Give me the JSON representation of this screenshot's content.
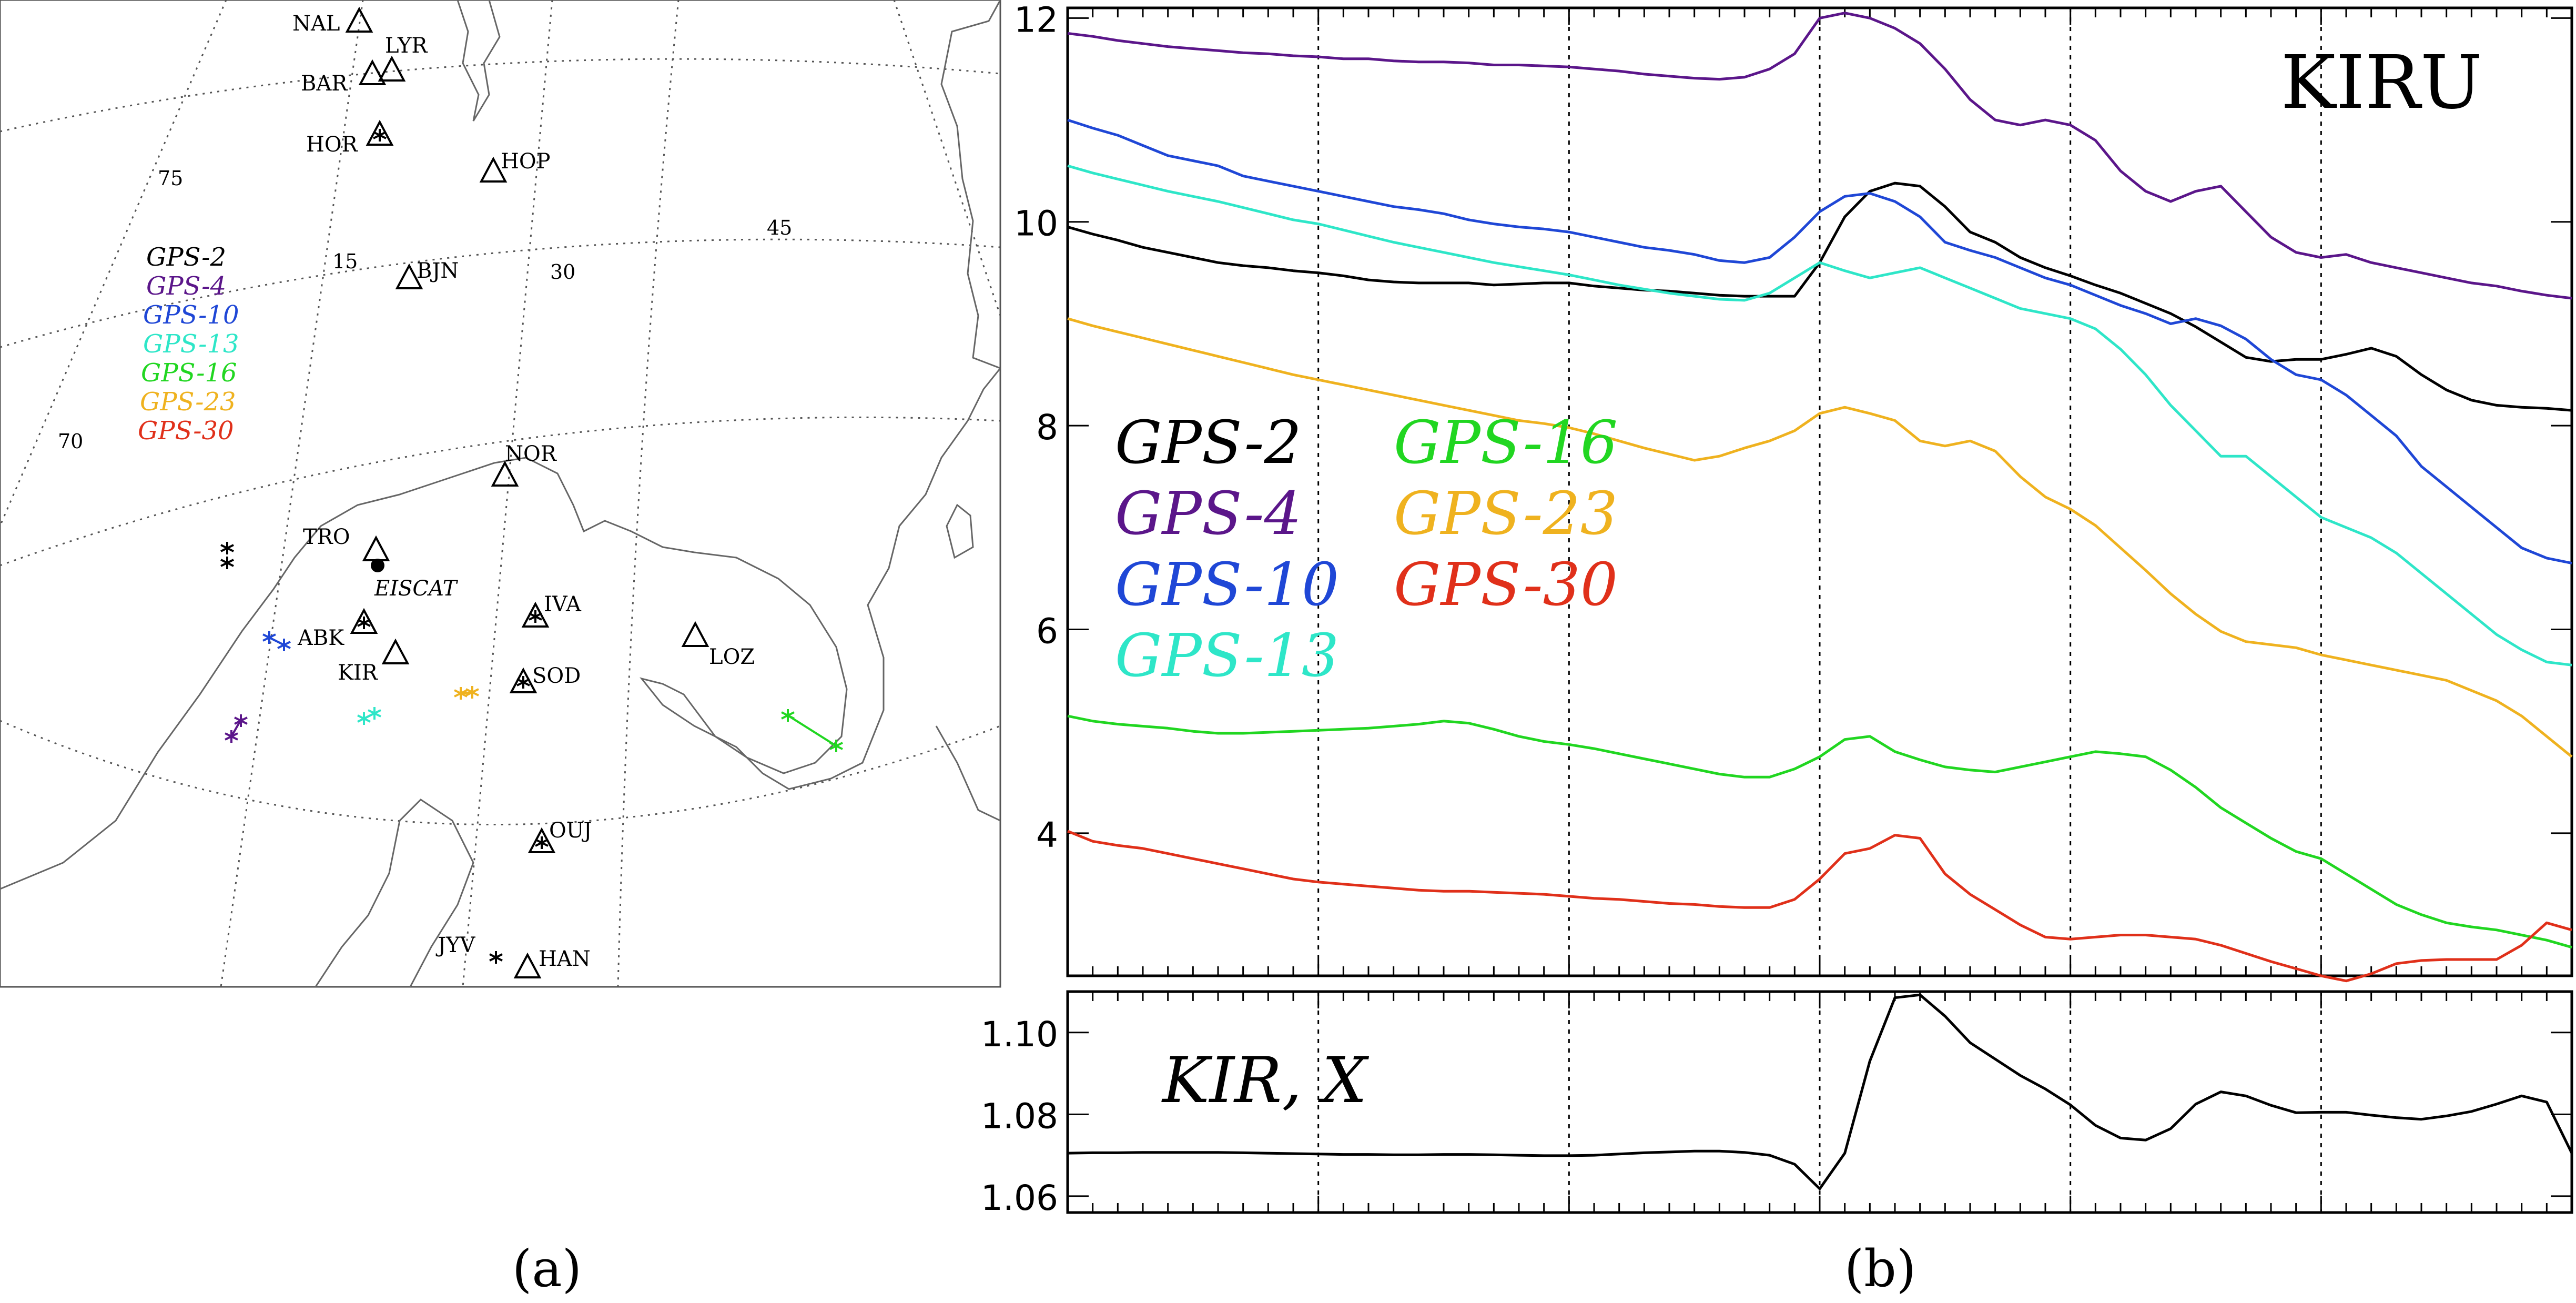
{
  "panel_a": {
    "caption": "(a)",
    "lat_labels": [
      {
        "key": "lat-75",
        "text": "75"
      },
      {
        "key": "lat-70",
        "text": "70"
      }
    ],
    "lon_labels": [
      {
        "key": "lon-15",
        "text": "15"
      },
      {
        "key": "lon-30",
        "text": "30"
      },
      {
        "key": "lon-45",
        "text": "45"
      }
    ],
    "stations": [
      {
        "key": "nal",
        "text": "NAL"
      },
      {
        "key": "lyr",
        "text": "LYR"
      },
      {
        "key": "bar",
        "text": "BAR"
      },
      {
        "key": "hor",
        "text": "HOR"
      },
      {
        "key": "hop",
        "text": "HOP"
      },
      {
        "key": "bjn",
        "text": "BJN"
      },
      {
        "key": "nor",
        "text": "NOR"
      },
      {
        "key": "tro",
        "text": "TRO"
      },
      {
        "key": "abk",
        "text": "ABK"
      },
      {
        "key": "kir",
        "text": "KIR"
      },
      {
        "key": "iva",
        "text": "IVA"
      },
      {
        "key": "sod",
        "text": "SOD"
      },
      {
        "key": "loz",
        "text": "LOZ"
      },
      {
        "key": "ouj",
        "text": "OUJ"
      },
      {
        "key": "jyv",
        "text": "JYV"
      },
      {
        "key": "han",
        "text": "HAN"
      }
    ],
    "eiscat_label": "EISCAT",
    "legend": [
      {
        "text": "GPS-2",
        "color": "#000000"
      },
      {
        "text": "GPS-4",
        "color": "#5b168a"
      },
      {
        "text": "GPS-10",
        "color": "#1f47d6"
      },
      {
        "text": "GPS-13",
        "color": "#2ee6c8"
      },
      {
        "text": "GPS-16",
        "color": "#21d621"
      },
      {
        "text": "GPS-23",
        "color": "#efb21f"
      },
      {
        "text": "GPS-30",
        "color": "#e0301a"
      }
    ]
  },
  "panel_b": {
    "caption": "(b)",
    "top_label": "KIRU",
    "bottom_label": "KIR, X"
  },
  "chart_data": [
    {
      "type": "line",
      "title": "KIRU",
      "ylim": [
        2.6,
        12.1
      ],
      "yticks": [
        "4",
        "6",
        "8",
        "10",
        "12"
      ],
      "yticks_values": [
        4,
        6,
        8,
        10,
        12
      ],
      "xlim": [
        0,
        60
      ],
      "x": [
        0,
        1,
        2,
        3,
        4,
        5,
        6,
        7,
        8,
        9,
        10,
        11,
        12,
        13,
        14,
        15,
        16,
        17,
        18,
        19,
        20,
        21,
        22,
        23,
        24,
        25,
        26,
        27,
        28,
        29,
        30,
        31,
        32,
        33,
        34,
        35,
        36,
        37,
        38,
        39,
        40,
        41,
        42,
        43,
        44,
        45,
        46,
        47,
        48,
        49,
        50,
        51,
        52,
        53,
        54,
        55,
        56,
        57,
        58,
        59,
        60
      ],
      "vlines": [
        10,
        20,
        30,
        40,
        50
      ],
      "grid": false,
      "legend_placement": "center-left",
      "series": [
        {
          "name": "GPS-2",
          "color": "#000000",
          "values": [
            9.95,
            9.88,
            9.82,
            9.75,
            9.7,
            9.65,
            9.6,
            9.57,
            9.55,
            9.52,
            9.5,
            9.47,
            9.43,
            9.41,
            9.4,
            9.4,
            9.4,
            9.38,
            9.39,
            9.4,
            9.4,
            9.37,
            9.35,
            9.33,
            9.32,
            9.3,
            9.28,
            9.27,
            9.27,
            9.27,
            9.6,
            10.05,
            10.3,
            10.38,
            10.35,
            10.15,
            9.9,
            9.8,
            9.65,
            9.55,
            9.47,
            9.38,
            9.3,
            9.2,
            9.1,
            8.97,
            8.82,
            8.67,
            8.63,
            8.65,
            8.65,
            8.7,
            8.76,
            8.68,
            8.5,
            8.35,
            8.25,
            8.2,
            8.18,
            8.17,
            8.15
          ]
        },
        {
          "name": "GPS-4",
          "color": "#5b168a",
          "values": [
            11.85,
            11.82,
            11.78,
            11.75,
            11.72,
            11.7,
            11.68,
            11.66,
            11.65,
            11.63,
            11.62,
            11.6,
            11.6,
            11.58,
            11.57,
            11.57,
            11.56,
            11.54,
            11.54,
            11.53,
            11.52,
            11.5,
            11.48,
            11.45,
            11.43,
            11.41,
            11.4,
            11.42,
            11.5,
            11.65,
            12.0,
            12.05,
            12.0,
            11.9,
            11.75,
            11.5,
            11.2,
            11.0,
            10.95,
            11.0,
            10.95,
            10.8,
            10.5,
            10.3,
            10.2,
            10.3,
            10.35,
            10.1,
            9.85,
            9.7,
            9.65,
            9.68,
            9.6,
            9.55,
            9.5,
            9.45,
            9.4,
            9.37,
            9.32,
            9.28,
            9.25
          ]
        },
        {
          "name": "GPS-10",
          "color": "#1f47d6",
          "values": [
            11.0,
            10.92,
            10.85,
            10.75,
            10.65,
            10.6,
            10.55,
            10.45,
            10.4,
            10.35,
            10.3,
            10.25,
            10.2,
            10.15,
            10.12,
            10.08,
            10.02,
            9.98,
            9.95,
            9.93,
            9.9,
            9.85,
            9.8,
            9.75,
            9.72,
            9.68,
            9.62,
            9.6,
            9.65,
            9.85,
            10.1,
            10.25,
            10.28,
            10.2,
            10.05,
            9.8,
            9.72,
            9.65,
            9.55,
            9.45,
            9.38,
            9.28,
            9.18,
            9.1,
            9.0,
            9.05,
            8.98,
            8.85,
            8.65,
            8.5,
            8.45,
            8.3,
            8.1,
            7.9,
            7.6,
            7.4,
            7.2,
            7.0,
            6.8,
            6.7,
            6.65
          ]
        },
        {
          "name": "GPS-13",
          "color": "#2ee6c8",
          "values": [
            10.55,
            10.48,
            10.42,
            10.36,
            10.3,
            10.25,
            10.2,
            10.14,
            10.08,
            10.02,
            9.98,
            9.92,
            9.86,
            9.8,
            9.75,
            9.7,
            9.65,
            9.6,
            9.56,
            9.52,
            9.48,
            9.43,
            9.38,
            9.34,
            9.3,
            9.27,
            9.24,
            9.23,
            9.3,
            9.45,
            9.6,
            9.52,
            9.45,
            9.5,
            9.55,
            9.45,
            9.35,
            9.25,
            9.15,
            9.1,
            9.05,
            8.95,
            8.75,
            8.5,
            8.2,
            7.95,
            7.7,
            7.7,
            7.5,
            7.3,
            7.1,
            7.0,
            6.9,
            6.75,
            6.55,
            6.35,
            6.15,
            5.95,
            5.8,
            5.68,
            5.65
          ]
        },
        {
          "name": "GPS-16",
          "color": "#21d621",
          "values": [
            5.15,
            5.1,
            5.07,
            5.05,
            5.03,
            5.0,
            4.98,
            4.98,
            4.99,
            5.0,
            5.01,
            5.02,
            5.03,
            5.05,
            5.07,
            5.1,
            5.08,
            5.02,
            4.95,
            4.9,
            4.87,
            4.83,
            4.78,
            4.73,
            4.68,
            4.63,
            4.58,
            4.55,
            4.55,
            4.63,
            4.75,
            4.92,
            4.95,
            4.8,
            4.72,
            4.65,
            4.62,
            4.6,
            4.65,
            4.7,
            4.75,
            4.8,
            4.78,
            4.75,
            4.62,
            4.45,
            4.25,
            4.1,
            3.95,
            3.82,
            3.75,
            3.6,
            3.45,
            3.3,
            3.2,
            3.12,
            3.08,
            3.05,
            3.0,
            2.95,
            2.88
          ]
        },
        {
          "name": "GPS-23",
          "color": "#efb21f",
          "values": [
            9.05,
            8.98,
            8.92,
            8.86,
            8.8,
            8.74,
            8.68,
            8.62,
            8.56,
            8.5,
            8.45,
            8.4,
            8.35,
            8.3,
            8.25,
            8.2,
            8.15,
            8.1,
            8.05,
            8.02,
            7.98,
            7.92,
            7.85,
            7.78,
            7.72,
            7.66,
            7.7,
            7.78,
            7.85,
            7.95,
            8.12,
            8.18,
            8.12,
            8.05,
            7.85,
            7.8,
            7.85,
            7.75,
            7.5,
            7.3,
            7.18,
            7.02,
            6.8,
            6.58,
            6.35,
            6.15,
            5.98,
            5.88,
            5.85,
            5.82,
            5.75,
            5.7,
            5.65,
            5.6,
            5.55,
            5.5,
            5.4,
            5.3,
            5.15,
            4.95,
            4.75
          ]
        },
        {
          "name": "GPS-30",
          "color": "#e0301a",
          "values": [
            4.02,
            3.92,
            3.88,
            3.85,
            3.8,
            3.75,
            3.7,
            3.65,
            3.6,
            3.55,
            3.52,
            3.5,
            3.48,
            3.46,
            3.44,
            3.43,
            3.43,
            3.42,
            3.41,
            3.4,
            3.38,
            3.36,
            3.35,
            3.33,
            3.31,
            3.3,
            3.28,
            3.27,
            3.27,
            3.35,
            3.55,
            3.8,
            3.85,
            3.98,
            3.95,
            3.6,
            3.4,
            3.25,
            3.1,
            2.98,
            2.96,
            2.98,
            3.0,
            3.0,
            2.98,
            2.96,
            2.9,
            2.82,
            2.74,
            2.67,
            2.6,
            2.55,
            2.62,
            2.72,
            2.75,
            2.76,
            2.76,
            2.76,
            2.9,
            3.12,
            3.05
          ]
        }
      ]
    },
    {
      "type": "line",
      "title": "KIR, X",
      "ylim": [
        1.056,
        1.11
      ],
      "yticks": [
        "1.06",
        "1.08",
        "1.10"
      ],
      "yticks_values": [
        1.06,
        1.08,
        1.1
      ],
      "xlim": [
        0,
        60
      ],
      "x": [
        0,
        1,
        2,
        3,
        4,
        5,
        6,
        7,
        8,
        9,
        10,
        11,
        12,
        13,
        14,
        15,
        16,
        17,
        18,
        19,
        20,
        21,
        22,
        23,
        24,
        25,
        26,
        27,
        28,
        29,
        30,
        31,
        32,
        33,
        34,
        35,
        36,
        37,
        38,
        39,
        40,
        41,
        42,
        43,
        44,
        45,
        46,
        47,
        48,
        49,
        50,
        51,
        52,
        53,
        54,
        55,
        56,
        57,
        58,
        59,
        60
      ],
      "vlines": [
        10,
        20,
        30,
        40,
        50
      ],
      "grid": false,
      "series": [
        {
          "name": "KIR, X",
          "color": "#000000",
          "values": [
            1.0705,
            1.0706,
            1.0706,
            1.0707,
            1.0707,
            1.0707,
            1.0707,
            1.0706,
            1.0705,
            1.0704,
            1.0703,
            1.0702,
            1.0702,
            1.0701,
            1.0701,
            1.0702,
            1.0702,
            1.0701,
            1.07,
            1.0699,
            1.0699,
            1.07,
            1.0703,
            1.0706,
            1.0708,
            1.071,
            1.071,
            1.0707,
            1.07,
            1.0678,
            1.0618,
            1.0705,
            1.093,
            1.1085,
            1.1092,
            1.104,
            1.0975,
            1.0935,
            1.0895,
            1.0862,
            1.0823,
            1.0773,
            1.0742,
            1.0737,
            1.0765,
            1.0825,
            1.0855,
            1.0845,
            1.0822,
            1.0804,
            1.0805,
            1.0805,
            1.0798,
            1.0792,
            1.0788,
            1.0796,
            1.0807,
            1.0825,
            1.0845,
            1.083,
            1.0705
          ]
        }
      ]
    }
  ]
}
